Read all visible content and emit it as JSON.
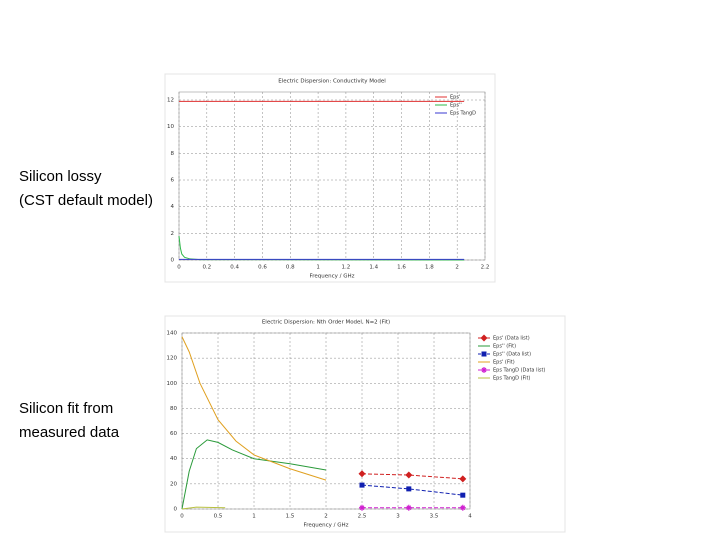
{
  "slide_labels": [
    {
      "lines": [
        "Silicon lossy",
        "(CST default model)"
      ]
    },
    {
      "lines": [
        "Silicon fit from",
        "measured data"
      ]
    }
  ],
  "chart_data": [
    {
      "type": "line",
      "title": "Electric Dispersion: Conductivity Model",
      "x_label": "Frequency / GHz",
      "xlim": [
        0,
        2.2
      ],
      "xticks": [
        0,
        0.2,
        0.4,
        0.6,
        0.8,
        1,
        1.2,
        1.4,
        1.6,
        1.8,
        2,
        2.2
      ],
      "ylim": [
        0,
        12.6
      ],
      "yticks": [
        0,
        2,
        4,
        6,
        8,
        10,
        12
      ],
      "grid": true,
      "legend": "upper right",
      "series": [
        {
          "name": "Eps'",
          "color": "#e03030",
          "x": [
            0,
            2.05
          ],
          "values": [
            11.9,
            11.9
          ]
        },
        {
          "name": "Eps''",
          "color": "#2fb84a",
          "x": [
            0,
            0.01,
            0.02,
            0.04,
            0.08,
            0.15,
            2.05
          ],
          "values": [
            1.8,
            0.9,
            0.45,
            0.2,
            0.08,
            0.03,
            0
          ]
        },
        {
          "name": "Eps TangD",
          "color": "#3a3ad0",
          "x": [
            0,
            2.05
          ],
          "values": [
            0.05,
            0.05
          ]
        }
      ]
    },
    {
      "type": "line",
      "title": "Electric Dispersion: Nth Order Model, N=2 (Fit)",
      "x_label": "Frequency / GHz",
      "xlim": [
        0,
        4
      ],
      "xticks": [
        0,
        0.5,
        1,
        1.5,
        2,
        2.5,
        3,
        3.5,
        4
      ],
      "ylim": [
        0,
        140
      ],
      "yticks": [
        0,
        20,
        40,
        60,
        80,
        100,
        120,
        140
      ],
      "grid": true,
      "legend": "right outside",
      "series": [
        {
          "name": "Eps' (Data list)",
          "color": "#d02020",
          "marker": "diamond",
          "dash": true,
          "x": [
            2.5,
            3.15,
            3.9
          ],
          "values": [
            28,
            27,
            24
          ]
        },
        {
          "name": "Eps'' (Fit)",
          "color": "#2a9a3a",
          "x": [
            0,
            0.1,
            0.2,
            0.35,
            0.5,
            0.7,
            1,
            1.5,
            2
          ],
          "values": [
            0,
            30,
            48,
            55,
            53,
            47,
            40,
            36,
            31
          ]
        },
        {
          "name": "Eps'' (Data list)",
          "color": "#1020b0",
          "marker": "square",
          "dash": true,
          "x": [
            2.5,
            3.15,
            3.9
          ],
          "values": [
            19,
            16,
            11
          ]
        },
        {
          "name": "Eps' (Fit)",
          "color": "#e0a020",
          "x": [
            0,
            0.1,
            0.25,
            0.5,
            0.75,
            1,
            1.5,
            2
          ],
          "values": [
            137,
            125,
            100,
            71,
            54,
            43,
            32,
            23
          ]
        },
        {
          "name": "Eps TangD (Data list)",
          "color": "#d020d0",
          "marker": "star",
          "dash": true,
          "x": [
            2.5,
            3.15,
            3.9
          ],
          "values": [
            1,
            1,
            1
          ]
        },
        {
          "name": "Eps TangD (Fit)",
          "color": "#b8c040",
          "x": [
            0,
            0.2,
            0.6
          ],
          "values": [
            0,
            1.5,
            1
          ]
        }
      ]
    }
  ]
}
